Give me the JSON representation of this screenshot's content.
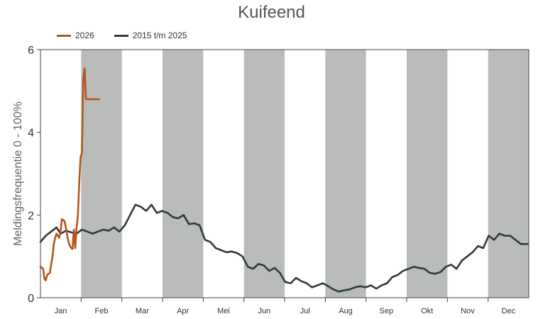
{
  "chart_data": {
    "type": "line",
    "title": "Kuifeend",
    "ylabel": "Meldingsfrequentie 0 - 100%",
    "xlabel": "",
    "ylim": [
      0,
      6
    ],
    "yticks": [
      0,
      2,
      4,
      6
    ],
    "categories": [
      "Jan",
      "Feb",
      "Mar",
      "Apr",
      "Mei",
      "Jun",
      "Jul",
      "Aug",
      "Sep",
      "Okt",
      "Nov",
      "Dec"
    ],
    "shaded_months": [
      "Feb",
      "Apr",
      "Jun",
      "Aug",
      "Okt",
      "Dec"
    ],
    "grid": false,
    "legend_position": "top-left",
    "colors": {
      "series_2026": "#b5561a",
      "series_history": "#2f3b36",
      "band": "#b9bcb9"
    },
    "series": [
      {
        "name": "2026",
        "color": "#b5561a",
        "x": [
          1,
          3,
          4,
          5,
          6,
          8,
          9,
          10,
          11,
          12,
          13,
          14,
          15,
          16,
          17,
          18,
          19,
          20,
          21,
          22,
          23,
          24,
          25,
          26,
          27,
          28,
          29,
          30,
          31,
          32,
          33,
          34,
          35,
          36,
          37,
          38,
          39,
          40,
          41,
          42,
          43,
          44,
          45
        ],
        "y": [
          0.75,
          0.7,
          0.45,
          0.42,
          0.55,
          0.6,
          0.8,
          1.0,
          1.3,
          1.45,
          1.55,
          1.5,
          1.45,
          1.6,
          1.9,
          1.88,
          1.85,
          1.7,
          1.5,
          1.35,
          1.25,
          1.2,
          1.18,
          1.65,
          1.2,
          1.7,
          2.0,
          2.8,
          3.4,
          3.5,
          5.3,
          5.55,
          4.8,
          4.8,
          4.8,
          4.8,
          4.8,
          4.8,
          4.8,
          4.8,
          4.8,
          4.8,
          4.8
        ]
      },
      {
        "name": "2015 t/m 2025",
        "color": "#2f3b36",
        "x": [
          1,
          5,
          9,
          13,
          16,
          20,
          24,
          28,
          32,
          36,
          40,
          44,
          48,
          52,
          56,
          60,
          64,
          68,
          72,
          76,
          80,
          84,
          88,
          92,
          96,
          100,
          104,
          108,
          112,
          116,
          120,
          124,
          128,
          132,
          136,
          140,
          144,
          148,
          152,
          156,
          160,
          164,
          168,
          172,
          176,
          180,
          184,
          188,
          192,
          196,
          200,
          204,
          208,
          212,
          216,
          220,
          224,
          228,
          232,
          236,
          240,
          244,
          248,
          252,
          256,
          260,
          264,
          268,
          272,
          276,
          280,
          284,
          288,
          292,
          296,
          300,
          304,
          308,
          312,
          316,
          320,
          324,
          328,
          332,
          336,
          340,
          344,
          348,
          352,
          356,
          360,
          365
        ],
        "y": [
          1.35,
          1.5,
          1.6,
          1.7,
          1.55,
          1.62,
          1.58,
          1.55,
          1.65,
          1.6,
          1.55,
          1.6,
          1.65,
          1.62,
          1.7,
          1.6,
          1.75,
          2.0,
          2.25,
          2.2,
          2.1,
          2.25,
          2.05,
          2.1,
          2.05,
          1.95,
          1.92,
          2.0,
          1.78,
          1.8,
          1.75,
          1.4,
          1.35,
          1.2,
          1.15,
          1.1,
          1.12,
          1.08,
          1.0,
          0.75,
          0.7,
          0.82,
          0.78,
          0.65,
          0.72,
          0.6,
          0.38,
          0.35,
          0.48,
          0.4,
          0.35,
          0.25,
          0.3,
          0.35,
          0.28,
          0.2,
          0.15,
          0.18,
          0.2,
          0.25,
          0.28,
          0.25,
          0.3,
          0.22,
          0.3,
          0.35,
          0.5,
          0.55,
          0.65,
          0.7,
          0.75,
          0.72,
          0.7,
          0.6,
          0.58,
          0.62,
          0.75,
          0.8,
          0.7,
          0.9,
          1.0,
          1.1,
          1.25,
          1.2,
          1.5,
          1.4,
          1.55,
          1.5,
          1.5,
          1.4,
          1.3,
          1.3
        ]
      }
    ]
  }
}
